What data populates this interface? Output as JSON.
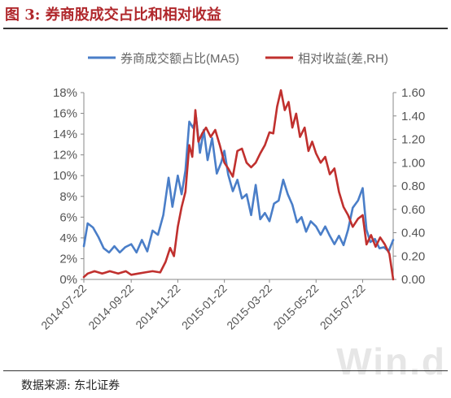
{
  "figure": {
    "title": "图 3: 券商股成交占比和相对收益",
    "source": "数据来源: 东北证券",
    "watermark": "Win.d"
  },
  "chart_data": {
    "type": "line",
    "title": "图 3: 券商股成交占比和相对收益",
    "legend_position": "top",
    "grid": false,
    "x_tick_labels": [
      "2014-07-22",
      "2014-09-22",
      "2014-11-22",
      "2015-01-22",
      "2015-03-22",
      "2015-05-22",
      "2015-07-22"
    ],
    "x_range": [
      "2014-07-22",
      "2015-08-31"
    ],
    "y_left": {
      "ticks": [
        "0%",
        "2%",
        "4%",
        "6%",
        "8%",
        "10%",
        "12%",
        "14%",
        "16%",
        "18%"
      ],
      "range": [
        0,
        18
      ],
      "unit": "%"
    },
    "y_right": {
      "ticks": [
        "0.00",
        "0.20",
        "0.40",
        "0.60",
        "0.80",
        "1.00",
        "1.20",
        "1.40",
        "1.60"
      ],
      "range": [
        0,
        1.6
      ]
    },
    "series": [
      {
        "name": "券商成交额占比(MA5)",
        "axis": "left",
        "color": "#4a7ec8",
        "points": [
          [
            "2014-07-22",
            3.2
          ],
          [
            "2014-07-27",
            5.4
          ],
          [
            "2014-08-03",
            5.0
          ],
          [
            "2014-08-10",
            4.1
          ],
          [
            "2014-08-17",
            3.0
          ],
          [
            "2014-08-24",
            2.6
          ],
          [
            "2014-08-31",
            3.2
          ],
          [
            "2014-09-07",
            2.6
          ],
          [
            "2014-09-14",
            3.1
          ],
          [
            "2014-09-22",
            3.4
          ],
          [
            "2014-09-29",
            2.6
          ],
          [
            "2014-10-06",
            3.8
          ],
          [
            "2014-10-13",
            2.7
          ],
          [
            "2014-10-20",
            4.7
          ],
          [
            "2014-10-27",
            4.3
          ],
          [
            "2014-11-03",
            6.2
          ],
          [
            "2014-11-10",
            9.8
          ],
          [
            "2014-11-15",
            7.0
          ],
          [
            "2014-11-22",
            10.0
          ],
          [
            "2014-11-27",
            8.2
          ],
          [
            "2014-12-02",
            10.5
          ],
          [
            "2014-12-07",
            15.2
          ],
          [
            "2014-12-12",
            14.6
          ],
          [
            "2014-12-16",
            15.6
          ],
          [
            "2014-12-21",
            12.2
          ],
          [
            "2014-12-26",
            14.4
          ],
          [
            "2014-12-31",
            11.5
          ],
          [
            "2015-01-06",
            13.6
          ],
          [
            "2015-01-12",
            10.2
          ],
          [
            "2015-01-18",
            11.3
          ],
          [
            "2015-01-22",
            12.4
          ],
          [
            "2015-01-27",
            10.1
          ],
          [
            "2015-02-02",
            8.5
          ],
          [
            "2015-02-08",
            9.6
          ],
          [
            "2015-02-14",
            7.8
          ],
          [
            "2015-02-20",
            8.2
          ],
          [
            "2015-02-26",
            6.2
          ],
          [
            "2015-03-04",
            9.1
          ],
          [
            "2015-03-10",
            5.8
          ],
          [
            "2015-03-16",
            6.4
          ],
          [
            "2015-03-22",
            5.6
          ],
          [
            "2015-03-28",
            7.3
          ],
          [
            "2015-04-03",
            7.6
          ],
          [
            "2015-04-09",
            9.6
          ],
          [
            "2015-04-15",
            8.2
          ],
          [
            "2015-04-21",
            7.2
          ],
          [
            "2015-04-27",
            5.5
          ],
          [
            "2015-05-03",
            6.0
          ],
          [
            "2015-05-09",
            4.6
          ],
          [
            "2015-05-15",
            5.6
          ],
          [
            "2015-05-22",
            5.1
          ],
          [
            "2015-05-28",
            4.3
          ],
          [
            "2015-06-03",
            5.1
          ],
          [
            "2015-06-09",
            4.2
          ],
          [
            "2015-06-15",
            3.4
          ],
          [
            "2015-06-21",
            4.2
          ],
          [
            "2015-06-27",
            3.3
          ],
          [
            "2015-07-03",
            4.8
          ],
          [
            "2015-07-09",
            6.9
          ],
          [
            "2015-07-16",
            7.6
          ],
          [
            "2015-07-22",
            8.8
          ],
          [
            "2015-07-27",
            4.8
          ],
          [
            "2015-08-01",
            3.6
          ],
          [
            "2015-08-07",
            3.9
          ],
          [
            "2015-08-13",
            3.0
          ],
          [
            "2015-08-19",
            3.1
          ],
          [
            "2015-08-25",
            2.7
          ],
          [
            "2015-08-31",
            3.8
          ]
        ]
      },
      {
        "name": "相对收益(差,RH)",
        "axis": "right",
        "color": "#c0302e",
        "points": [
          [
            "2014-07-22",
            0.02
          ],
          [
            "2014-07-27",
            0.05
          ],
          [
            "2014-08-05",
            0.07
          ],
          [
            "2014-08-15",
            0.05
          ],
          [
            "2014-08-25",
            0.07
          ],
          [
            "2014-09-05",
            0.05
          ],
          [
            "2014-09-15",
            0.07
          ],
          [
            "2014-09-22",
            0.04
          ],
          [
            "2014-10-01",
            0.05
          ],
          [
            "2014-10-10",
            0.06
          ],
          [
            "2014-10-20",
            0.07
          ],
          [
            "2014-10-30",
            0.06
          ],
          [
            "2014-11-06",
            0.15
          ],
          [
            "2014-11-12",
            0.27
          ],
          [
            "2014-11-17",
            0.2
          ],
          [
            "2014-11-22",
            0.45
          ],
          [
            "2014-11-27",
            0.62
          ],
          [
            "2014-12-02",
            0.75
          ],
          [
            "2014-12-07",
            1.15
          ],
          [
            "2014-12-11",
            1.05
          ],
          [
            "2014-12-15",
            1.45
          ],
          [
            "2014-12-19",
            1.18
          ],
          [
            "2014-12-24",
            1.25
          ],
          [
            "2014-12-29",
            1.3
          ],
          [
            "2015-01-04",
            1.22
          ],
          [
            "2015-01-10",
            1.28
          ],
          [
            "2015-01-16",
            1.15
          ],
          [
            "2015-01-22",
            1.0
          ],
          [
            "2015-01-27",
            0.95
          ],
          [
            "2015-02-02",
            0.88
          ],
          [
            "2015-02-08",
            1.1
          ],
          [
            "2015-02-14",
            1.12
          ],
          [
            "2015-02-20",
            1.0
          ],
          [
            "2015-02-26",
            0.96
          ],
          [
            "2015-03-04",
            1.0
          ],
          [
            "2015-03-10",
            1.08
          ],
          [
            "2015-03-16",
            1.15
          ],
          [
            "2015-03-22",
            1.26
          ],
          [
            "2015-03-27",
            1.25
          ],
          [
            "2015-04-01",
            1.48
          ],
          [
            "2015-04-06",
            1.62
          ],
          [
            "2015-04-11",
            1.45
          ],
          [
            "2015-04-16",
            1.52
          ],
          [
            "2015-04-21",
            1.3
          ],
          [
            "2015-04-26",
            1.42
          ],
          [
            "2015-05-01",
            1.22
          ],
          [
            "2015-05-07",
            1.3
          ],
          [
            "2015-05-12",
            1.1
          ],
          [
            "2015-05-17",
            1.18
          ],
          [
            "2015-05-22",
            1.08
          ],
          [
            "2015-05-28",
            1.0
          ],
          [
            "2015-06-03",
            1.05
          ],
          [
            "2015-06-09",
            0.9
          ],
          [
            "2015-06-15",
            0.95
          ],
          [
            "2015-06-21",
            0.75
          ],
          [
            "2015-06-27",
            0.62
          ],
          [
            "2015-07-03",
            0.55
          ],
          [
            "2015-07-09",
            0.45
          ],
          [
            "2015-07-16",
            0.52
          ],
          [
            "2015-07-22",
            0.55
          ],
          [
            "2015-07-27",
            0.3
          ],
          [
            "2015-08-02",
            0.38
          ],
          [
            "2015-08-08",
            0.28
          ],
          [
            "2015-08-14",
            0.36
          ],
          [
            "2015-08-20",
            0.3
          ],
          [
            "2015-08-26",
            0.22
          ],
          [
            "2015-08-31",
            0.0
          ]
        ]
      }
    ]
  }
}
